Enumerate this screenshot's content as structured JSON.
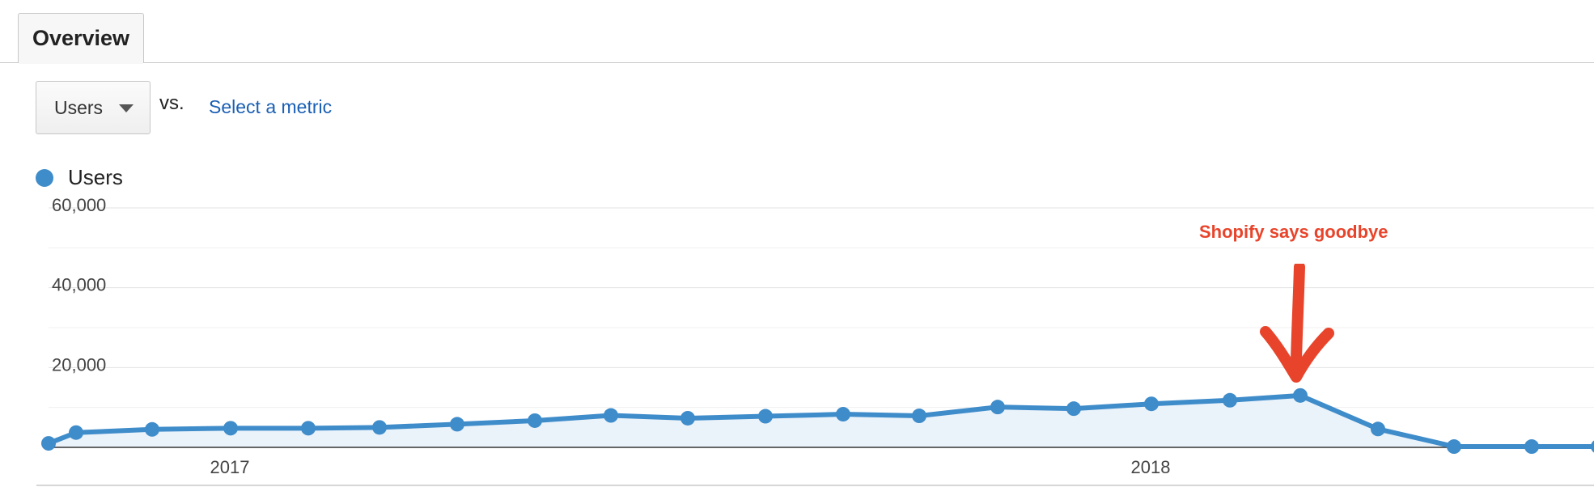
{
  "tabs": [
    {
      "label": "Overview",
      "active": true
    }
  ],
  "metric_selector": {
    "selected": "Users",
    "vs_label": "vs.",
    "compare_link": "Select a metric"
  },
  "legend": {
    "label": "Users",
    "color": "#3f8cca"
  },
  "annotation": {
    "text": "Shopify says goodbye",
    "color": "#e8442b"
  },
  "chart_data": {
    "type": "area",
    "title": "",
    "xlabel": "",
    "ylabel": "",
    "ylim": [
      0,
      60000
    ],
    "y_ticks": [
      20000,
      40000,
      60000
    ],
    "y_tick_labels": [
      "20,000",
      "40,000",
      "60,000"
    ],
    "x_tick_labels": [
      "2017",
      "2018"
    ],
    "grid": true,
    "series": [
      {
        "name": "Users",
        "color": "#3f8cca",
        "values": [
          1000,
          3700,
          4500,
          4800,
          4800,
          5000,
          5800,
          6700,
          8000,
          7300,
          7800,
          8300,
          7900,
          10100,
          9700,
          10900,
          11800,
          13000,
          4600,
          200,
          200,
          200
        ]
      }
    ]
  }
}
